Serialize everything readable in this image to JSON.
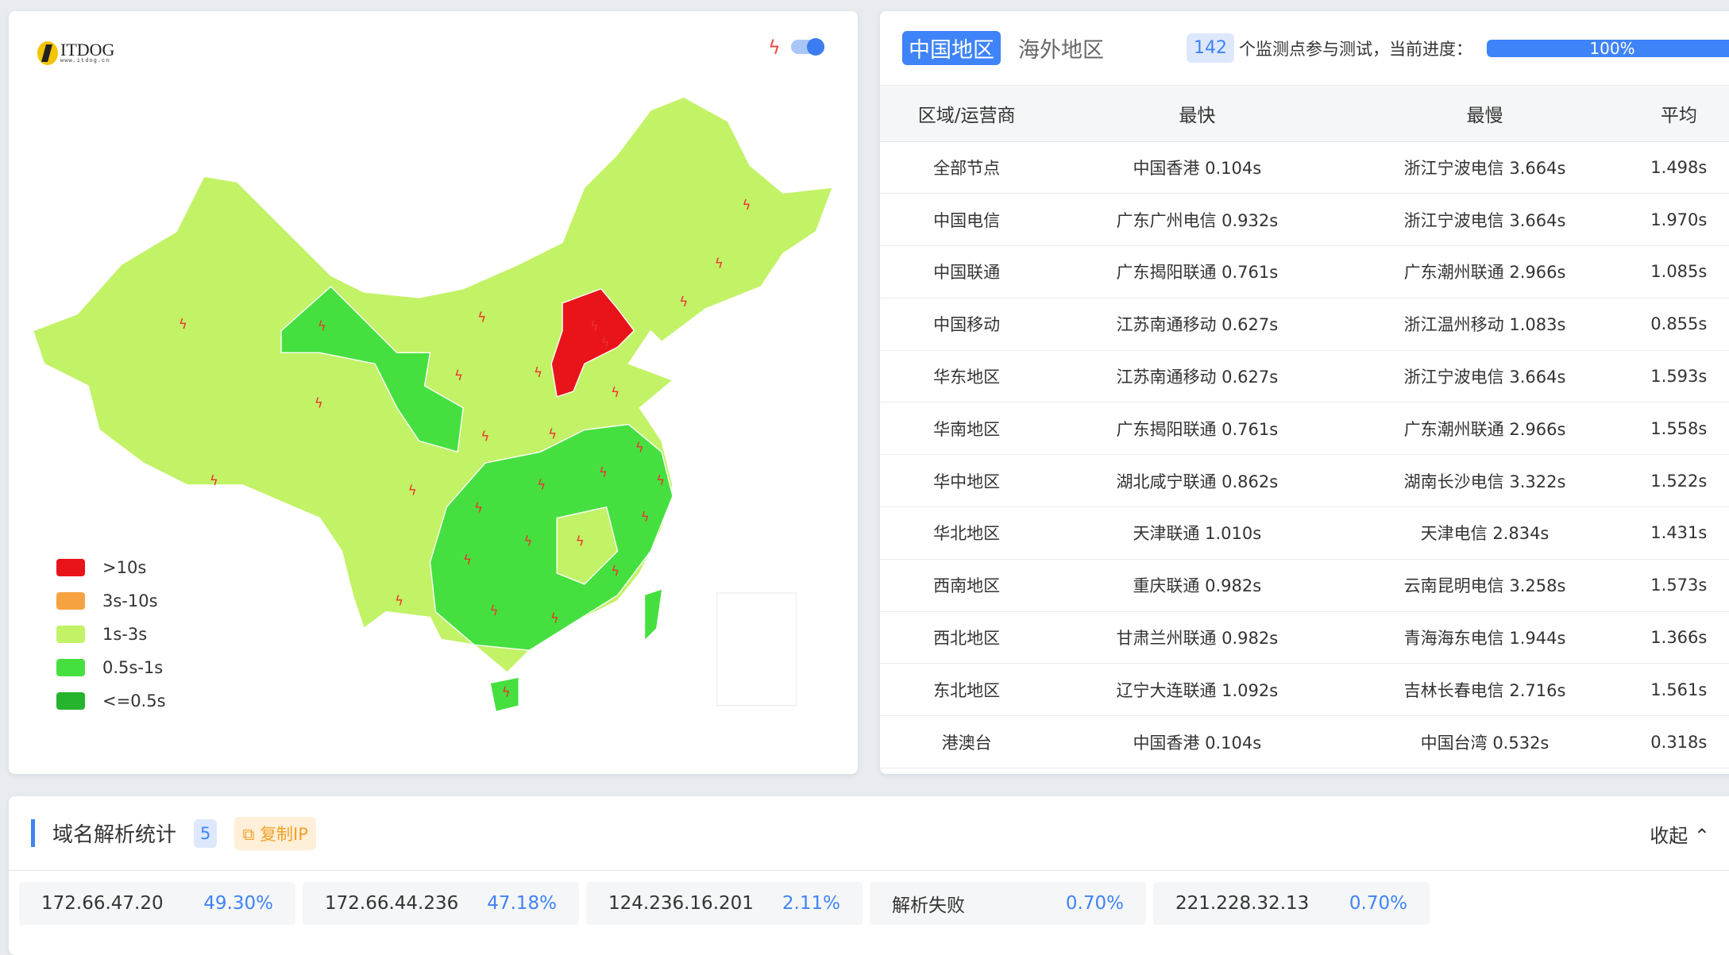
{
  "map_panel": {
    "logo": {
      "text": "ITDOG",
      "sub": "www.itdog.cn"
    },
    "toggle_on": true,
    "legend": [
      {
        "label": ">10s",
        "color": "#e8141a"
      },
      {
        "label": "3s-10s",
        "color": "#f7a241"
      },
      {
        "label": "1s-3s",
        "color": "#c2f266"
      },
      {
        "label": "0.5s-1s",
        "color": "#45e03f"
      },
      {
        "label": "<=0.5s",
        "color": "#26b32d"
      }
    ]
  },
  "table_panel": {
    "tabs": [
      {
        "label": "中国地区",
        "active": true
      },
      {
        "label": "海外地区",
        "active": false
      }
    ],
    "node_count": "142",
    "count_text": "个监测点参与测试，当前进度：",
    "progress": "100%",
    "columns": [
      "区域/运营商",
      "最快",
      "最慢",
      "平均"
    ],
    "rows": [
      [
        "全部节点",
        "中国香港 0.104s",
        "浙江宁波电信 3.664s",
        "1.498s"
      ],
      [
        "中国电信",
        "广东广州电信 0.932s",
        "浙江宁波电信 3.664s",
        "1.970s"
      ],
      [
        "中国联通",
        "广东揭阳联通 0.761s",
        "广东潮州联通 2.966s",
        "1.085s"
      ],
      [
        "中国移动",
        "江苏南通移动 0.627s",
        "浙江温州移动 1.083s",
        "0.855s"
      ],
      [
        "华东地区",
        "江苏南通移动 0.627s",
        "浙江宁波电信 3.664s",
        "1.593s"
      ],
      [
        "华南地区",
        "广东揭阳联通 0.761s",
        "广东潮州联通 2.966s",
        "1.558s"
      ],
      [
        "华中地区",
        "湖北咸宁联通 0.862s",
        "湖南长沙电信 3.322s",
        "1.522s"
      ],
      [
        "华北地区",
        "天津联通 1.010s",
        "天津电信 2.834s",
        "1.431s"
      ],
      [
        "西南地区",
        "重庆联通 0.982s",
        "云南昆明电信 3.258s",
        "1.573s"
      ],
      [
        "西北地区",
        "甘肃兰州联通 0.982s",
        "青海海东电信 1.944s",
        "1.366s"
      ],
      [
        "东北地区",
        "辽宁大连联通 1.092s",
        "吉林长春电信 2.716s",
        "1.561s"
      ],
      [
        "港澳台",
        "中国香港 0.104s",
        "中国台湾 0.532s",
        "0.318s"
      ]
    ]
  },
  "dns_panel": {
    "title": "域名解析统计",
    "count": "5",
    "copy_label": "复制IP",
    "collapse_label": "收起 ⌃",
    "results": [
      {
        "ip": "172.66.47.20",
        "pct": "49.30%"
      },
      {
        "ip": "172.66.44.236",
        "pct": "47.18%"
      },
      {
        "ip": "124.236.16.201",
        "pct": "2.11%"
      },
      {
        "ip": "解析失败",
        "pct": "0.70%"
      },
      {
        "ip": "221.228.32.13",
        "pct": "0.70%"
      }
    ]
  },
  "colors": {
    "accent": "#3f83f8",
    "copy": "#f3a028"
  }
}
